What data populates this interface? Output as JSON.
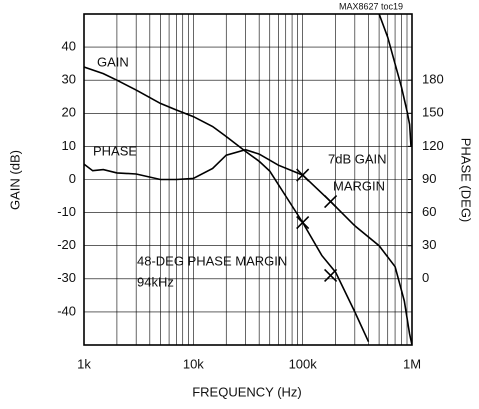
{
  "chart_data": {
    "type": "line",
    "note_label": "MAX8627 toc19",
    "xlabel": "FREQUENCY (Hz)",
    "ylabel": "GAIN (dB)",
    "y2label": "PHASE (DEG)",
    "xscale": "log",
    "xlim": [
      1000,
      1000000
    ],
    "xticks": [
      {
        "value": 1000,
        "label": "1k"
      },
      {
        "value": 10000,
        "label": "10k"
      },
      {
        "value": 100000,
        "label": "100k"
      },
      {
        "value": 1000000,
        "label": "1M"
      }
    ],
    "ylim": [
      -50,
      50
    ],
    "yticks": [
      -40,
      -30,
      -20,
      -10,
      0,
      10,
      20,
      30,
      40
    ],
    "y2lim": [
      -60,
      240
    ],
    "y2ticks": [
      0,
      30,
      60,
      90,
      120,
      150,
      180
    ],
    "grid": true,
    "annotations": [
      "7dB GAIN",
      "MARGIN",
      "48-DEG PHASE MARGIN",
      "94kHz"
    ],
    "series": [
      {
        "name": "GAIN",
        "color": "#000000",
        "x": [
          1000,
          1500,
          2000,
          3000,
          5000,
          7000,
          10000,
          15000,
          20000,
          30000,
          40000,
          50000,
          70000,
          100000,
          150000,
          200000,
          300000,
          400000
        ],
        "values": [
          34,
          32,
          30,
          27,
          23,
          21,
          19,
          16,
          13,
          8.5,
          5.5,
          2.5,
          -5,
          -13,
          -23,
          -28,
          -40,
          -49
        ],
        "markers": [
          {
            "x": 100000,
            "y": -13
          },
          {
            "x": 180000,
            "y": -29
          }
        ]
      },
      {
        "name": "PHASE",
        "color": "#000000",
        "axis": "y2",
        "x": [
          1000,
          1200,
          1500,
          2000,
          3000,
          5000,
          7000,
          10000,
          15000,
          20000,
          30000,
          40000,
          60000,
          100000,
          180000,
          300000,
          500000,
          700000,
          850000,
          950000,
          1000000,
          null,
          480000,
          600000,
          800000,
          900000,
          950000,
          980000
        ],
        "values": [
          104,
          98,
          99,
          96,
          95,
          90,
          90,
          91,
          100,
          112,
          117,
          113,
          103,
          94,
          70,
          48,
          30,
          11,
          -20,
          -50,
          -60,
          null,
          245,
          219,
          174,
          152,
          140,
          120
        ],
        "markers": [
          {
            "x": 100000,
            "y": 94
          },
          {
            "x": 180000,
            "y": 70
          }
        ]
      }
    ]
  }
}
